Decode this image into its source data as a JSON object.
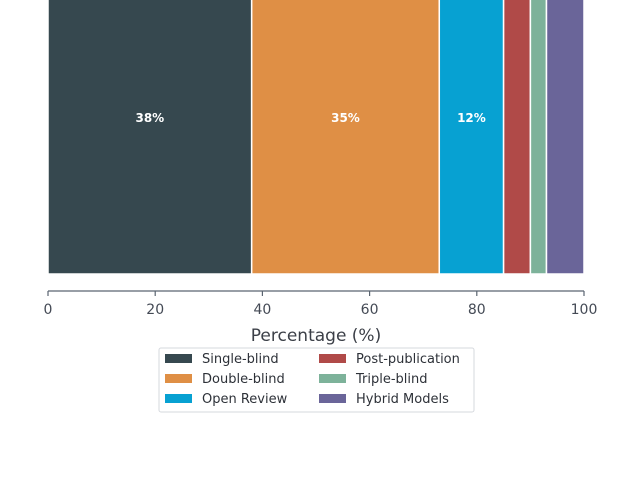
{
  "chart_data": {
    "type": "bar",
    "orientation": "horizontal-stacked",
    "xlabel": "Percentage (%)",
    "xlim": [
      0,
      100
    ],
    "xticks": [
      0,
      20,
      40,
      60,
      80,
      100
    ],
    "grid": false,
    "legend_position": "bottom-center",
    "legend_columns": 2,
    "series": [
      {
        "name": "Single-blind",
        "value": 38,
        "label": "38%",
        "color": "#36484f"
      },
      {
        "name": "Double-blind",
        "value": 35,
        "label": "35%",
        "color": "#df8f45"
      },
      {
        "name": "Open Review",
        "value": 12,
        "label": "12%",
        "color": "#07a1d2"
      },
      {
        "name": "Post-publication",
        "value": 5,
        "label": "",
        "color": "#b04a48"
      },
      {
        "name": "Triple-blind",
        "value": 3,
        "label": "",
        "color": "#7db29a"
      },
      {
        "name": "Hybrid Models",
        "value": 7,
        "label": "",
        "color": "#6a6599"
      }
    ]
  }
}
